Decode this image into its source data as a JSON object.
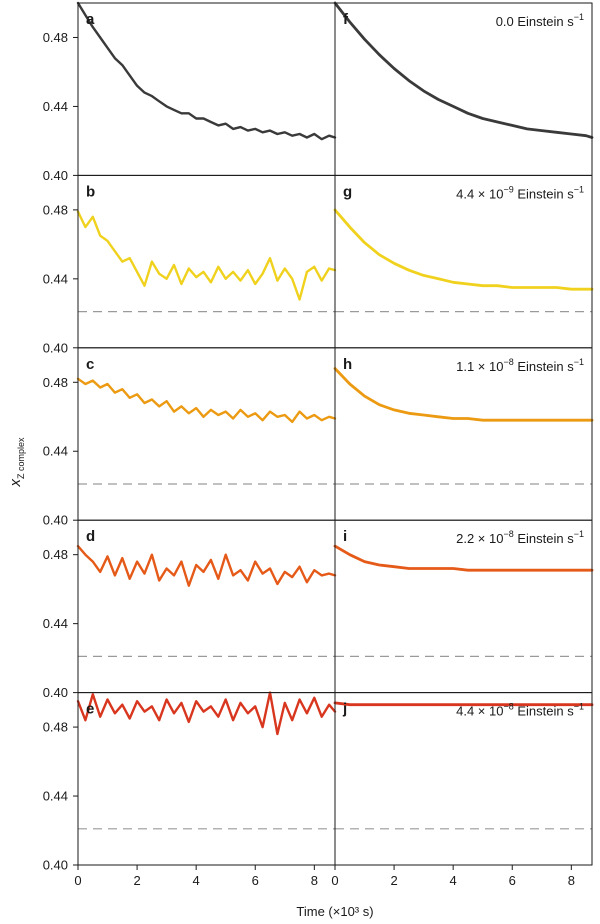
{
  "chart_data": {
    "type": "line",
    "xlabel": "Time (×10³ s)",
    "ylabel": "x_Z complex",
    "ylabel_main": "x",
    "ylabel_sub": "Z complex",
    "xlim": [
      0,
      8.7
    ],
    "ylim": [
      0.4,
      0.5
    ],
    "xticks": [
      "0",
      "2",
      "4",
      "6",
      "8"
    ],
    "yticks": [
      "0.40",
      "0.44",
      "0.48"
    ],
    "reference_line": 0.421,
    "rows": [
      {
        "color": "#3a3a3a",
        "left_letter": "a",
        "right_letter": "f",
        "rate_main": "0.0 Einstein s",
        "rate_sup": "−1",
        "rate_prefix": "",
        "rate_exp": "",
        "show_reference": false,
        "experimental": {
          "x": [
            0,
            0.25,
            0.5,
            0.75,
            1,
            1.25,
            1.5,
            1.75,
            2,
            2.25,
            2.5,
            2.75,
            3,
            3.25,
            3.5,
            3.75,
            4,
            4.25,
            4.5,
            4.75,
            5,
            5.25,
            5.5,
            5.75,
            6,
            6.25,
            6.5,
            6.75,
            7,
            7.25,
            7.5,
            7.75,
            8,
            8.25,
            8.5,
            8.7
          ],
          "y": [
            0.5,
            0.493,
            0.486,
            0.48,
            0.474,
            0.468,
            0.464,
            0.458,
            0.452,
            0.448,
            0.446,
            0.443,
            0.44,
            0.438,
            0.436,
            0.436,
            0.433,
            0.433,
            0.431,
            0.429,
            0.43,
            0.427,
            0.428,
            0.426,
            0.427,
            0.425,
            0.426,
            0.424,
            0.425,
            0.423,
            0.424,
            0.422,
            0.424,
            0.421,
            0.423,
            0.422
          ]
        },
        "model": {
          "x": [
            0,
            0.5,
            1,
            1.5,
            2,
            2.5,
            3,
            3.5,
            4,
            4.5,
            5,
            5.5,
            6,
            6.5,
            7,
            7.5,
            8,
            8.5,
            8.7
          ],
          "y": [
            0.5,
            0.489,
            0.479,
            0.47,
            0.462,
            0.455,
            0.449,
            0.444,
            0.44,
            0.436,
            0.433,
            0.431,
            0.429,
            0.427,
            0.426,
            0.425,
            0.424,
            0.423,
            0.422
          ]
        }
      },
      {
        "color": "#f0d21e",
        "left_letter": "b",
        "right_letter": "g",
        "rate_main": "Einstein s",
        "rate_sup": "−1",
        "rate_prefix": "4.4 × 10",
        "rate_exp": "−9",
        "show_reference": true,
        "experimental": {
          "x": [
            0,
            0.25,
            0.5,
            0.75,
            1,
            1.25,
            1.5,
            1.75,
            2,
            2.25,
            2.5,
            2.75,
            3,
            3.25,
            3.5,
            3.75,
            4,
            4.25,
            4.5,
            4.75,
            5,
            5.25,
            5.5,
            5.75,
            6,
            6.25,
            6.5,
            6.75,
            7,
            7.25,
            7.5,
            7.75,
            8,
            8.25,
            8.5,
            8.7
          ],
          "y": [
            0.479,
            0.47,
            0.476,
            0.465,
            0.462,
            0.456,
            0.45,
            0.452,
            0.444,
            0.436,
            0.45,
            0.443,
            0.44,
            0.448,
            0.437,
            0.446,
            0.441,
            0.444,
            0.438,
            0.447,
            0.44,
            0.444,
            0.439,
            0.445,
            0.437,
            0.443,
            0.452,
            0.439,
            0.446,
            0.44,
            0.428,
            0.444,
            0.447,
            0.439,
            0.446,
            0.445
          ]
        },
        "model": {
          "x": [
            0,
            0.5,
            1,
            1.5,
            2,
            2.5,
            3,
            3.5,
            4,
            4.5,
            5,
            5.5,
            6,
            6.5,
            7,
            7.5,
            8,
            8.5,
            8.7
          ],
          "y": [
            0.48,
            0.47,
            0.461,
            0.454,
            0.449,
            0.445,
            0.442,
            0.44,
            0.438,
            0.437,
            0.436,
            0.436,
            0.435,
            0.435,
            0.435,
            0.435,
            0.434,
            0.434,
            0.434
          ]
        }
      },
      {
        "color": "#ec9a12",
        "left_letter": "c",
        "right_letter": "h",
        "rate_main": "Einstein s",
        "rate_sup": "−1",
        "rate_prefix": "1.1 × 10",
        "rate_exp": "−8",
        "show_reference": true,
        "experimental": {
          "x": [
            0,
            0.25,
            0.5,
            0.75,
            1,
            1.25,
            1.5,
            1.75,
            2,
            2.25,
            2.5,
            2.75,
            3,
            3.25,
            3.5,
            3.75,
            4,
            4.25,
            4.5,
            4.75,
            5,
            5.25,
            5.5,
            5.75,
            6,
            6.25,
            6.5,
            6.75,
            7,
            7.25,
            7.5,
            7.75,
            8,
            8.25,
            8.5,
            8.7
          ],
          "y": [
            0.482,
            0.479,
            0.481,
            0.477,
            0.479,
            0.474,
            0.476,
            0.471,
            0.473,
            0.468,
            0.47,
            0.466,
            0.469,
            0.463,
            0.466,
            0.462,
            0.465,
            0.46,
            0.464,
            0.461,
            0.463,
            0.459,
            0.464,
            0.46,
            0.462,
            0.458,
            0.463,
            0.46,
            0.461,
            0.457,
            0.463,
            0.459,
            0.461,
            0.458,
            0.46,
            0.459
          ]
        },
        "model": {
          "x": [
            0,
            0.5,
            1,
            1.5,
            2,
            2.5,
            3,
            3.5,
            4,
            4.5,
            5,
            5.5,
            6,
            6.5,
            7,
            7.5,
            8,
            8.5,
            8.7
          ],
          "y": [
            0.488,
            0.479,
            0.472,
            0.467,
            0.464,
            0.462,
            0.461,
            0.46,
            0.459,
            0.459,
            0.458,
            0.458,
            0.458,
            0.458,
            0.458,
            0.458,
            0.458,
            0.458,
            0.458
          ]
        }
      },
      {
        "color": "#e55a18",
        "left_letter": "d",
        "right_letter": "i",
        "rate_main": "Einstein s",
        "rate_sup": "−1",
        "rate_prefix": "2.2 × 10",
        "rate_exp": "−8",
        "show_reference": true,
        "experimental": {
          "x": [
            0,
            0.25,
            0.5,
            0.75,
            1,
            1.25,
            1.5,
            1.75,
            2,
            2.25,
            2.5,
            2.75,
            3,
            3.25,
            3.5,
            3.75,
            4,
            4.25,
            4.5,
            4.75,
            5,
            5.25,
            5.5,
            5.75,
            6,
            6.25,
            6.5,
            6.75,
            7,
            7.25,
            7.5,
            7.75,
            8,
            8.25,
            8.5,
            8.7
          ],
          "y": [
            0.485,
            0.48,
            0.476,
            0.47,
            0.479,
            0.468,
            0.478,
            0.466,
            0.476,
            0.469,
            0.48,
            0.465,
            0.472,
            0.468,
            0.476,
            0.462,
            0.474,
            0.47,
            0.477,
            0.466,
            0.48,
            0.468,
            0.471,
            0.465,
            0.476,
            0.469,
            0.472,
            0.463,
            0.47,
            0.467,
            0.473,
            0.464,
            0.471,
            0.468,
            0.469,
            0.468
          ]
        },
        "model": {
          "x": [
            0,
            0.5,
            1,
            1.5,
            2,
            2.5,
            3,
            3.5,
            4,
            4.5,
            5,
            5.5,
            6,
            6.5,
            7,
            7.5,
            8,
            8.5,
            8.7
          ],
          "y": [
            0.485,
            0.48,
            0.476,
            0.474,
            0.473,
            0.472,
            0.472,
            0.472,
            0.472,
            0.471,
            0.471,
            0.471,
            0.471,
            0.471,
            0.471,
            0.471,
            0.471,
            0.471,
            0.471
          ]
        }
      },
      {
        "color": "#d8361e",
        "left_letter": "e",
        "right_letter": "j",
        "rate_main": "Einstein s",
        "rate_sup": "−1",
        "rate_prefix": "4.4 × 10",
        "rate_exp": "−8",
        "show_reference": true,
        "experimental": {
          "x": [
            0,
            0.25,
            0.5,
            0.75,
            1,
            1.25,
            1.5,
            1.75,
            2,
            2.25,
            2.5,
            2.75,
            3,
            3.25,
            3.5,
            3.75,
            4,
            4.25,
            4.5,
            4.75,
            5,
            5.25,
            5.5,
            5.75,
            6,
            6.25,
            6.5,
            6.75,
            7,
            7.25,
            7.5,
            7.75,
            8,
            8.25,
            8.5,
            8.7
          ],
          "y": [
            0.495,
            0.484,
            0.499,
            0.486,
            0.496,
            0.488,
            0.493,
            0.485,
            0.495,
            0.489,
            0.492,
            0.484,
            0.496,
            0.488,
            0.494,
            0.483,
            0.495,
            0.489,
            0.492,
            0.486,
            0.496,
            0.484,
            0.494,
            0.488,
            0.492,
            0.48,
            0.5,
            0.476,
            0.494,
            0.484,
            0.496,
            0.488,
            0.497,
            0.486,
            0.493,
            0.489
          ]
        },
        "model": {
          "x": [
            0,
            0.5,
            1,
            1.5,
            2,
            2.5,
            3,
            3.5,
            4,
            4.5,
            5,
            5.5,
            6,
            6.5,
            7,
            7.5,
            8,
            8.5,
            8.7
          ],
          "y": [
            0.494,
            0.493,
            0.493,
            0.493,
            0.493,
            0.493,
            0.493,
            0.493,
            0.493,
            0.493,
            0.493,
            0.493,
            0.493,
            0.493,
            0.493,
            0.493,
            0.493,
            0.493,
            0.493
          ]
        }
      }
    ]
  }
}
